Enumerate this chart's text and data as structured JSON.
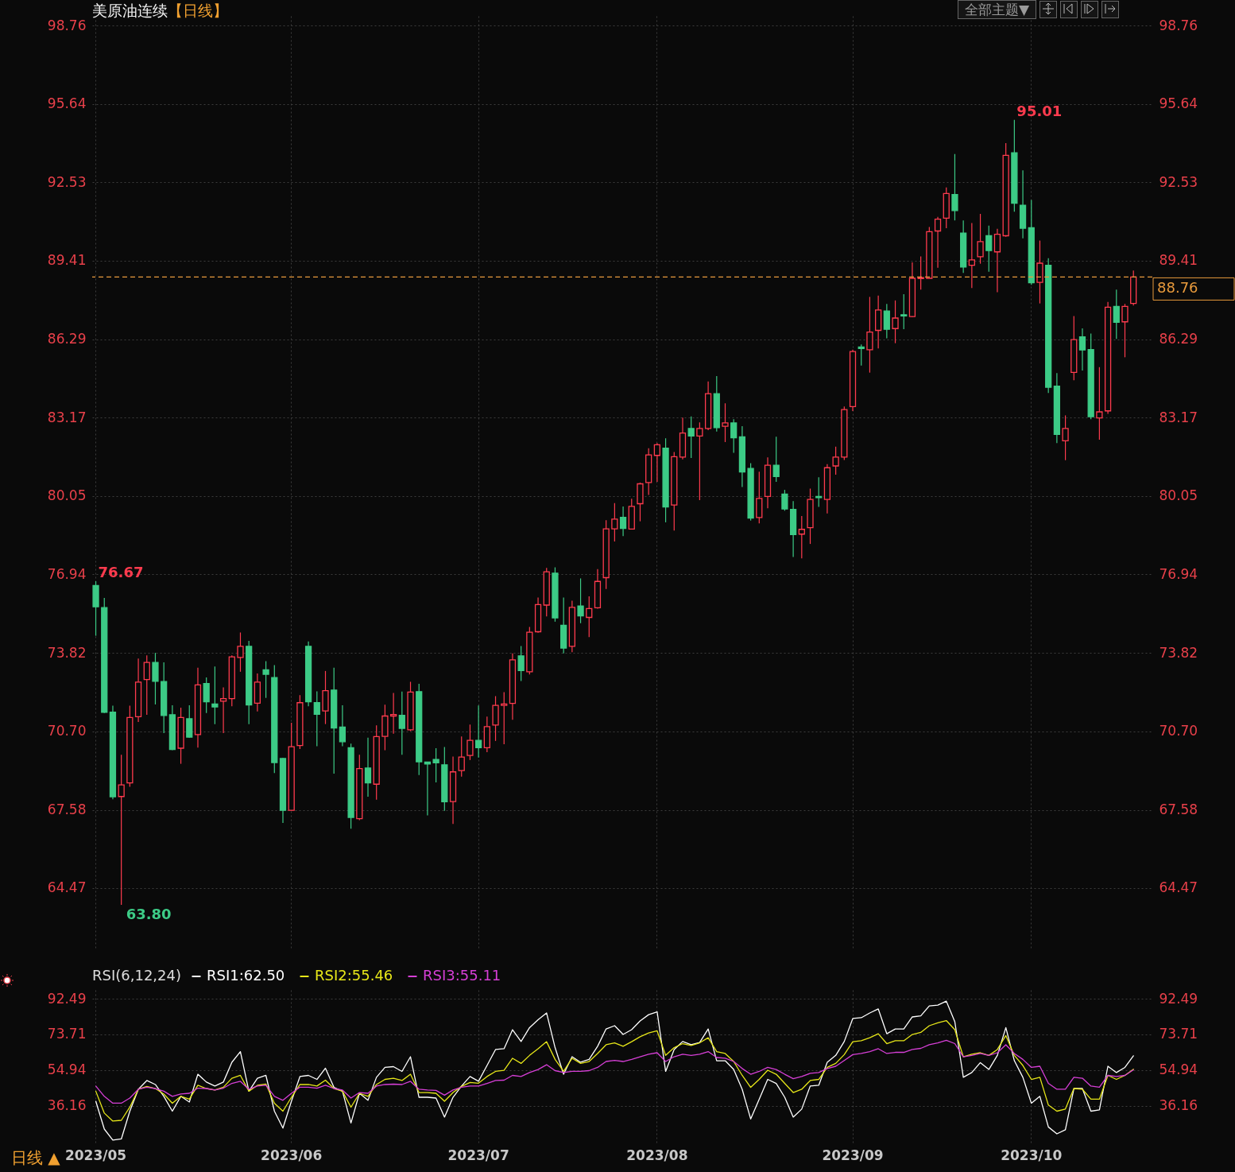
{
  "chart_data": [
    {
      "type": "candlestick",
      "title": "美原油连续",
      "subtitle": "【日线】",
      "categories": [
        "2023/05",
        null,
        null,
        null,
        null,
        null,
        null,
        null,
        null,
        null,
        null,
        null,
        null,
        null,
        null,
        null,
        null,
        null,
        null,
        null,
        null,
        null,
        null,
        "2023/06",
        null,
        null,
        null,
        null,
        null,
        null,
        null,
        null,
        null,
        null,
        null,
        null,
        null,
        null,
        null,
        null,
        null,
        null,
        null,
        null,
        null,
        "2023/07",
        null,
        null,
        null,
        null,
        null,
        null,
        null,
        null,
        null,
        null,
        null,
        null,
        null,
        null,
        null,
        null,
        null,
        null,
        null,
        null,
        "2023/08",
        null,
        null,
        null,
        null,
        null,
        null,
        null,
        null,
        null,
        null,
        null,
        null,
        null,
        null,
        null,
        null,
        null,
        null,
        null,
        null,
        null,
        null,
        "2023/09",
        null,
        null,
        null,
        null,
        null,
        null,
        null,
        null,
        null,
        null,
        null,
        null,
        null,
        null,
        null,
        null,
        null,
        null,
        null,
        null,
        "2023/10",
        null,
        null,
        null,
        null,
        null,
        null,
        null,
        null,
        null,
        null,
        null,
        null
      ],
      "ohlc": [
        [
          76.5,
          76.67,
          74.5,
          75.65
        ],
        [
          75.62,
          76.0,
          71.43,
          71.46
        ],
        [
          71.46,
          71.72,
          68.0,
          68.1
        ],
        [
          68.11,
          69.77,
          63.8,
          68.57
        ],
        [
          68.65,
          71.72,
          68.5,
          71.25
        ],
        [
          71.28,
          73.59,
          71.07,
          72.66
        ],
        [
          72.76,
          73.72,
          71.36,
          73.44
        ],
        [
          73.44,
          73.82,
          71.77,
          72.69
        ],
        [
          72.68,
          73.44,
          70.63,
          71.33
        ],
        [
          71.36,
          71.74,
          69.95,
          69.98
        ],
        [
          70.03,
          71.64,
          69.41,
          71.25
        ],
        [
          71.2,
          71.74,
          70.45,
          70.47
        ],
        [
          70.57,
          73.23,
          70.05,
          72.55
        ],
        [
          72.6,
          72.84,
          71.43,
          71.88
        ],
        [
          71.79,
          73.28,
          70.99,
          71.67
        ],
        [
          71.9,
          72.45,
          70.63,
          72.0
        ],
        [
          72.0,
          73.72,
          71.7,
          73.66
        ],
        [
          73.64,
          74.63,
          73.07,
          74.08
        ],
        [
          74.08,
          74.3,
          70.99,
          71.75
        ],
        [
          71.82,
          73.0,
          71.49,
          72.66
        ],
        [
          73.15,
          73.49,
          72.03,
          72.97
        ],
        [
          72.84,
          73.33,
          69.04,
          69.46
        ],
        [
          69.62,
          69.64,
          67.06,
          67.56
        ],
        [
          67.56,
          71.04,
          67.56,
          70.09
        ],
        [
          70.14,
          72.14,
          70.0,
          71.84
        ],
        [
          74.08,
          74.27,
          71.7,
          71.88
        ],
        [
          71.84,
          72.29,
          70.11,
          71.38
        ],
        [
          71.51,
          73.1,
          70.99,
          72.32
        ],
        [
          72.34,
          73.23,
          69.02,
          70.83
        ],
        [
          70.87,
          71.74,
          70.11,
          70.29
        ],
        [
          70.05,
          70.21,
          66.83,
          67.28
        ],
        [
          67.23,
          69.77,
          67.17,
          69.22
        ],
        [
          69.24,
          70.45,
          68.1,
          68.65
        ],
        [
          68.6,
          70.94,
          67.98,
          70.49
        ],
        [
          70.5,
          71.76,
          69.95,
          71.31
        ],
        [
          71.31,
          72.23,
          70.61,
          71.37
        ],
        [
          71.34,
          72.28,
          69.77,
          70.82
        ],
        [
          70.76,
          72.67,
          70.71,
          72.26
        ],
        [
          72.28,
          72.59,
          68.96,
          69.49
        ],
        [
          69.48,
          69.49,
          67.36,
          69.4
        ],
        [
          69.58,
          70.03,
          68.67,
          69.45
        ],
        [
          69.37,
          70.08,
          67.54,
          67.9
        ],
        [
          67.91,
          69.7,
          67.02,
          69.09
        ],
        [
          69.14,
          70.5,
          68.9,
          69.68
        ],
        [
          69.74,
          70.97,
          69.56,
          70.34
        ],
        [
          70.34,
          71.73,
          69.66,
          70.05
        ],
        [
          70.05,
          71.29,
          69.87,
          70.89
        ],
        [
          70.95,
          72.1,
          70.32,
          71.73
        ],
        [
          71.73,
          72.26,
          70.19,
          71.79
        ],
        [
          71.81,
          73.8,
          71.16,
          73.54
        ],
        [
          73.7,
          74.09,
          72.7,
          73.12
        ],
        [
          73.07,
          74.85,
          72.96,
          74.64
        ],
        [
          74.66,
          76.02,
          74.62,
          75.74
        ],
        [
          75.72,
          77.2,
          75.27,
          77.04
        ],
        [
          76.99,
          77.22,
          75.06,
          75.21
        ],
        [
          74.92,
          76.02,
          73.8,
          74.01
        ],
        [
          74.08,
          75.89,
          73.85,
          75.63
        ],
        [
          75.68,
          76.78,
          75.0,
          75.29
        ],
        [
          75.23,
          76.07,
          74.45,
          75.58
        ],
        [
          75.61,
          77.15,
          75.58,
          76.66
        ],
        [
          76.81,
          79.09,
          76.36,
          78.75
        ],
        [
          78.75,
          79.77,
          78.25,
          79.14
        ],
        [
          79.21,
          79.64,
          78.46,
          78.77
        ],
        [
          78.74,
          79.95,
          78.72,
          79.64
        ],
        [
          79.75,
          80.59,
          79.05,
          80.54
        ],
        [
          80.59,
          81.95,
          80.1,
          81.69
        ],
        [
          81.67,
          82.16,
          80.62,
          82.09
        ],
        [
          81.96,
          82.35,
          79.01,
          79.62
        ],
        [
          79.7,
          81.8,
          78.68,
          81.62
        ],
        [
          81.6,
          83.17,
          81.51,
          82.56
        ],
        [
          82.74,
          83.22,
          81.57,
          82.44
        ],
        [
          82.44,
          82.98,
          79.89,
          82.74
        ],
        [
          82.74,
          84.61,
          82.67,
          84.12
        ],
        [
          84.12,
          84.82,
          82.62,
          82.77
        ],
        [
          82.83,
          83.74,
          82.2,
          82.96
        ],
        [
          82.96,
          83.11,
          81.77,
          82.37
        ],
        [
          82.41,
          82.83,
          80.41,
          81.01
        ],
        [
          81.15,
          81.36,
          79.08,
          79.18
        ],
        [
          79.2,
          81.02,
          78.97,
          79.96
        ],
        [
          80.04,
          81.59,
          79.57,
          81.28
        ],
        [
          81.28,
          82.41,
          80.62,
          80.83
        ],
        [
          80.13,
          80.3,
          79.47,
          79.54
        ],
        [
          79.52,
          79.85,
          77.63,
          78.52
        ],
        [
          78.54,
          79.26,
          77.58,
          78.73
        ],
        [
          78.8,
          80.35,
          78.15,
          79.92
        ],
        [
          80.04,
          80.8,
          79.62,
          79.99
        ],
        [
          79.92,
          81.32,
          79.36,
          81.18
        ],
        [
          81.25,
          82.02,
          80.9,
          81.6
        ],
        [
          81.6,
          83.61,
          81.49,
          83.49
        ],
        [
          83.61,
          85.87,
          83.43,
          85.8
        ],
        [
          85.98,
          86.08,
          85.24,
          85.92
        ],
        [
          85.87,
          87.97,
          84.96,
          86.57
        ],
        [
          86.64,
          88.02,
          85.92,
          87.45
        ],
        [
          87.41,
          87.69,
          86.32,
          86.68
        ],
        [
          86.71,
          87.83,
          86.13,
          87.13
        ],
        [
          87.26,
          88.08,
          86.69,
          87.21
        ],
        [
          87.19,
          89.34,
          87.17,
          88.71
        ],
        [
          88.7,
          89.58,
          88.26,
          88.74
        ],
        [
          88.71,
          90.75,
          88.71,
          90.56
        ],
        [
          90.59,
          91.15,
          89.13,
          91.06
        ],
        [
          91.1,
          92.32,
          90.7,
          92.08
        ],
        [
          92.04,
          93.65,
          91.01,
          91.4
        ],
        [
          90.51,
          91.01,
          88.92,
          89.16
        ],
        [
          89.23,
          90.91,
          88.32,
          89.44
        ],
        [
          89.57,
          91.27,
          89.29,
          90.17
        ],
        [
          90.4,
          90.8,
          88.97,
          89.81
        ],
        [
          89.76,
          90.68,
          88.16,
          90.46
        ],
        [
          90.4,
          94.08,
          90.36,
          93.6
        ],
        [
          93.7,
          95.01,
          91.36,
          91.69
        ],
        [
          91.61,
          93.0,
          90.3,
          90.7
        ],
        [
          90.72,
          91.82,
          88.45,
          88.53
        ],
        [
          88.55,
          90.21,
          87.71,
          89.31
        ],
        [
          89.23,
          89.51,
          84.15,
          84.38
        ],
        [
          84.42,
          84.94,
          82.16,
          82.5
        ],
        [
          82.25,
          83.26,
          81.48,
          82.74
        ],
        [
          84.97,
          87.21,
          84.66,
          86.27
        ],
        [
          86.38,
          86.72,
          85.04,
          85.86
        ],
        [
          85.88,
          86.51,
          83.11,
          83.21
        ],
        [
          83.16,
          85.18,
          82.29,
          83.4
        ],
        [
          83.44,
          87.77,
          83.32,
          87.56
        ],
        [
          87.59,
          88.26,
          86.3,
          86.96
        ],
        [
          86.98,
          87.69,
          85.57,
          87.59
        ],
        [
          87.71,
          89.02,
          87.63,
          88.76
        ]
      ],
      "ylim": [
        61.37,
        99.14
      ],
      "yticks": [
        98.76,
        95.64,
        92.53,
        89.41,
        86.29,
        83.17,
        80.05,
        76.94,
        73.82,
        {
          "value": 70.7,
          "label": "70.70"
        },
        67.58,
        64.47
      ],
      "y2lim": [
        61.37,
        99.14
      ],
      "y2ticks": [
        98.76,
        95.64,
        92.53,
        89.41,
        86.29,
        83.17,
        80.05,
        76.94,
        73.82,
        {
          "value": 70.7,
          "label": "70.70"
        },
        67.58,
        64.47
      ],
      "ref_lines": [
        {
          "axis": "y2",
          "value": 88.76,
          "label": "88.76",
          "color": "#e89a3c",
          "line_style": "dashed"
        }
      ],
      "annotations": [
        "76.67",
        "95.01",
        "63.80",
        "全部主题▼",
        "日线 ▲"
      ],
      "grid": true,
      "tick_labels": "y"
    },
    {
      "type": "line",
      "categories": [
        "2023/05",
        null,
        null,
        null,
        null,
        null,
        null,
        null,
        null,
        null,
        null,
        null,
        null,
        null,
        null,
        null,
        null,
        null,
        null,
        null,
        null,
        null,
        null,
        "2023/06",
        null,
        null,
        null,
        null,
        null,
        null,
        null,
        null,
        null,
        null,
        null,
        null,
        null,
        null,
        null,
        null,
        null,
        null,
        null,
        null,
        null,
        "2023/07",
        null,
        null,
        null,
        null,
        null,
        null,
        null,
        null,
        null,
        null,
        null,
        null,
        null,
        null,
        null,
        null,
        null,
        null,
        null,
        null,
        "2023/08",
        null,
        null,
        null,
        null,
        null,
        null,
        null,
        null,
        null,
        null,
        null,
        null,
        null,
        null,
        null,
        null,
        null,
        null,
        null,
        null,
        null,
        null,
        "2023/09",
        null,
        null,
        null,
        null,
        null,
        null,
        null,
        null,
        null,
        null,
        null,
        null,
        null,
        null,
        null,
        null,
        null,
        null,
        null,
        null,
        "2023/10",
        null,
        null,
        null,
        null,
        null,
        null,
        null,
        null,
        null,
        null,
        null,
        null
      ],
      "legend_title": "RSI(6,12,24)",
      "series": [
        {
          "name": "RSI1:62.50",
          "color": "#ffffff",
          "values": [
            38.6,
            24.0,
            18.2,
            18.8,
            33.4,
            44.9,
            49.5,
            47.4,
            41.2,
            33.4,
            41.2,
            38.2,
            52.8,
            48.7,
            46.6,
            48.7,
            59.1,
            64.7,
            43.9,
            50.7,
            52.2,
            33.4,
            24.5,
            38.6,
            51.6,
            52.2,
            50.1,
            56.0,
            45.9,
            43.9,
            27.2,
            42.8,
            39.1,
            51.2,
            56.4,
            56.8,
            54.3,
            62.0,
            40.7,
            40.7,
            40.3,
            30.3,
            40.7,
            46.6,
            51.6,
            49.1,
            57.4,
            65.8,
            66.2,
            76.2,
            70.0,
            77.3,
            81.4,
            85.0,
            66.8,
            52.8,
            62.0,
            59.1,
            60.6,
            67.5,
            76.6,
            78.3,
            73.7,
            76.2,
            80.8,
            84.1,
            85.6,
            54.3,
            65.8,
            70.0,
            68.3,
            69.5,
            76.6,
            59.9,
            59.9,
            55.3,
            44.9,
            29.3,
            39.7,
            50.1,
            48.0,
            40.7,
            30.3,
            34.5,
            46.6,
            47.0,
            59.1,
            62.7,
            70.0,
            82.1,
            82.5,
            85.0,
            87.1,
            74.1,
            76.6,
            76.6,
            82.9,
            83.5,
            88.7,
            89.1,
            91.2,
            80.4,
            51.2,
            53.7,
            58.9,
            55.3,
            62.7,
            77.3,
            59.9,
            51.2,
            37.6,
            41.2,
            25.1,
            21.5,
            23.6,
            45.3,
            45.3,
            33.4,
            34.1,
            57.0,
            53.7,
            56.4,
            62.5
          ]
        },
        {
          "name": "RSI2:55.46",
          "color": "#e6e619",
          "values": [
            43.9,
            32.4,
            28.2,
            28.6,
            35.5,
            44.9,
            46.4,
            45.3,
            42.4,
            37.6,
            41.2,
            39.7,
            47.0,
            45.3,
            44.5,
            46.0,
            50.7,
            52.2,
            43.9,
            47.0,
            47.6,
            37.6,
            33.4,
            40.7,
            47.4,
            47.4,
            46.6,
            49.7,
            45.3,
            43.9,
            35.5,
            42.8,
            41.2,
            47.4,
            50.1,
            50.7,
            49.5,
            52.8,
            43.2,
            43.2,
            42.8,
            38.6,
            43.2,
            46.4,
            48.5,
            48.1,
            51.6,
            54.3,
            54.9,
            61.2,
            58.5,
            62.7,
            66.2,
            69.9,
            60.6,
            54.3,
            61.2,
            58.5,
            59.5,
            63.7,
            68.3,
            69.3,
            67.5,
            69.9,
            72.5,
            74.5,
            75.6,
            62.7,
            66.8,
            68.9,
            67.9,
            69.3,
            72.0,
            64.7,
            63.7,
            59.5,
            52.2,
            45.9,
            50.1,
            54.9,
            52.8,
            48.0,
            43.2,
            44.9,
            49.5,
            50.1,
            56.4,
            58.5,
            63.1,
            69.9,
            70.4,
            72.0,
            74.1,
            68.9,
            70.4,
            70.4,
            73.7,
            74.8,
            78.3,
            79.8,
            81.0,
            76.2,
            62.0,
            63.3,
            64.1,
            62.7,
            65.8,
            73.1,
            62.7,
            57.4,
            50.1,
            51.2,
            36.6,
            33.4,
            34.5,
            45.3,
            44.9,
            39.7,
            39.7,
            52.2,
            50.1,
            52.2,
            55.46
          ]
        },
        {
          "name": "RSI3:55.11",
          "color": "#d63fd6",
          "values": [
            46.6,
            41.2,
            37.6,
            37.6,
            40.3,
            44.9,
            46.0,
            45.3,
            43.9,
            41.2,
            42.4,
            42.8,
            45.5,
            45.3,
            44.5,
            45.5,
            48.0,
            49.1,
            44.9,
            46.6,
            47.0,
            41.2,
            39.1,
            42.8,
            46.0,
            46.0,
            45.5,
            47.0,
            45.3,
            44.5,
            40.3,
            43.2,
            42.8,
            46.6,
            47.4,
            47.6,
            47.4,
            49.1,
            44.9,
            44.5,
            44.3,
            41.8,
            44.5,
            46.0,
            46.6,
            46.6,
            48.0,
            49.5,
            49.7,
            52.2,
            51.6,
            53.7,
            55.3,
            57.8,
            54.7,
            53.7,
            54.3,
            54.3,
            54.7,
            56.4,
            59.5,
            60.1,
            59.5,
            60.6,
            62.0,
            63.3,
            64.1,
            59.5,
            62.0,
            63.3,
            62.7,
            63.3,
            64.7,
            61.6,
            61.2,
            59.5,
            55.8,
            52.8,
            54.3,
            56.4,
            55.3,
            52.8,
            50.5,
            51.6,
            53.3,
            53.7,
            55.8,
            57.0,
            60.0,
            63.1,
            63.7,
            64.7,
            66.2,
            63.7,
            64.3,
            64.3,
            65.8,
            66.4,
            68.3,
            69.3,
            70.6,
            68.9,
            62.0,
            62.7,
            63.7,
            62.7,
            64.1,
            68.3,
            63.7,
            60.6,
            56.4,
            57.0,
            48.0,
            44.9,
            44.9,
            51.2,
            50.7,
            46.6,
            46.0,
            52.2,
            51.6,
            52.2,
            55.11
          ]
        }
      ],
      "ylim": [
        16.9,
        97.1
      ],
      "yticks": [
        92.49,
        73.71,
        54.94,
        36.16
      ],
      "y2lim": [
        16.9,
        97.1
      ],
      "y2ticks": [
        92.49,
        73.71,
        54.94,
        36.16
      ],
      "legend": "top left",
      "grid": true
    }
  ]
}
